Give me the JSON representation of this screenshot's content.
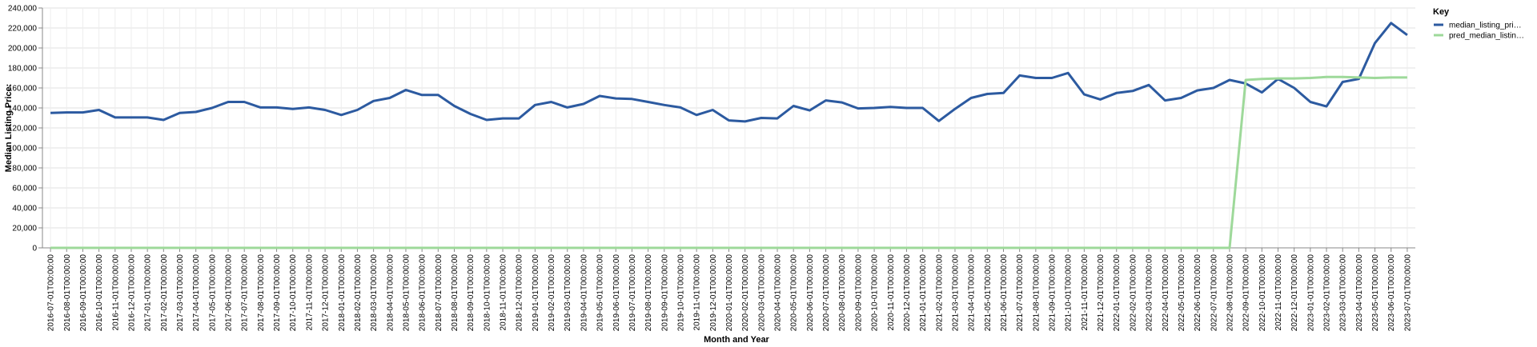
{
  "chart_data": {
    "type": "line",
    "xlabel": "Month and Year",
    "ylabel": "Median Listing Price:",
    "ylim": [
      0,
      240000
    ],
    "yticks": [
      "0",
      "20,000",
      "40,000",
      "60,000",
      "80,000",
      "100,000",
      "120,000",
      "140,000",
      "160,000",
      "180,000",
      "200,000",
      "220,000",
      "240,000"
    ],
    "grid": true,
    "legend": {
      "title": "Key",
      "position": "right"
    },
    "x": [
      "2016-07-01T00:00:00",
      "2016-08-01T00:00:00",
      "2016-09-01T00:00:00",
      "2016-10-01T00:00:00",
      "2016-11-01T00:00:00",
      "2016-12-01T00:00:00",
      "2017-01-01T00:00:00",
      "2017-02-01T00:00:00",
      "2017-03-01T00:00:00",
      "2017-04-01T00:00:00",
      "2017-05-01T00:00:00",
      "2017-06-01T00:00:00",
      "2017-07-01T00:00:00",
      "2017-08-01T00:00:00",
      "2017-09-01T00:00:00",
      "2017-10-01T00:00:00",
      "2017-11-01T00:00:00",
      "2017-12-01T00:00:00",
      "2018-01-01T00:00:00",
      "2018-02-01T00:00:00",
      "2018-03-01T00:00:00",
      "2018-04-01T00:00:00",
      "2018-05-01T00:00:00",
      "2018-06-01T00:00:00",
      "2018-07-01T00:00:00",
      "2018-08-01T00:00:00",
      "2018-09-01T00:00:00",
      "2018-10-01T00:00:00",
      "2018-11-01T00:00:00",
      "2018-12-01T00:00:00",
      "2019-01-01T00:00:00",
      "2019-02-01T00:00:00",
      "2019-03-01T00:00:00",
      "2019-04-01T00:00:00",
      "2019-05-01T00:00:00",
      "2019-06-01T00:00:00",
      "2019-07-01T00:00:00",
      "2019-08-01T00:00:00",
      "2019-09-01T00:00:00",
      "2019-10-01T00:00:00",
      "2019-11-01T00:00:00",
      "2019-12-01T00:00:00",
      "2020-01-01T00:00:00",
      "2020-02-01T00:00:00",
      "2020-03-01T00:00:00",
      "2020-04-01T00:00:00",
      "2020-05-01T00:00:00",
      "2020-06-01T00:00:00",
      "2020-07-01T00:00:00",
      "2020-08-01T00:00:00",
      "2020-09-01T00:00:00",
      "2020-10-01T00:00:00",
      "2020-11-01T00:00:00",
      "2020-12-01T00:00:00",
      "2021-01-01T00:00:00",
      "2021-02-01T00:00:00",
      "2021-03-01T00:00:00",
      "2021-04-01T00:00:00",
      "2021-05-01T00:00:00",
      "2021-06-01T00:00:00",
      "2021-07-01T00:00:00",
      "2021-08-01T00:00:00",
      "2021-09-01T00:00:00",
      "2021-10-01T00:00:00",
      "2021-11-01T00:00:00",
      "2021-12-01T00:00:00",
      "2022-01-01T00:00:00",
      "2022-02-01T00:00:00",
      "2022-03-01T00:00:00",
      "2022-04-01T00:00:00",
      "2022-05-01T00:00:00",
      "2022-06-01T00:00:00",
      "2022-07-01T00:00:00",
      "2022-08-01T00:00:00",
      "2022-09-01T00:00:00",
      "2022-10-01T00:00:00",
      "2022-11-01T00:00:00",
      "2022-12-01T00:00:00",
      "2023-01-01T00:00:00",
      "2023-02-01T00:00:00",
      "2023-03-01T00:00:00",
      "2023-04-01T00:00:00",
      "2023-05-01T00:00:00",
      "2023-06-01T00:00:00",
      "2023-07-01T00:00:00"
    ],
    "series": [
      {
        "name": "median_listing_pri…",
        "color": "#2c5aa0",
        "values": [
          135000,
          135500,
          135500,
          138000,
          130500,
          130500,
          130500,
          128000,
          135000,
          136000,
          140000,
          146000,
          146000,
          140500,
          140500,
          139000,
          140500,
          138000,
          133000,
          138000,
          147000,
          150000,
          158000,
          153000,
          153000,
          142000,
          134000,
          128000,
          129500,
          129500,
          143000,
          146000,
          140500,
          144000,
          152000,
          149500,
          149000,
          146000,
          143000,
          140500,
          133000,
          138000,
          127500,
          126500,
          130000,
          129500,
          142000,
          137500,
          147500,
          145500,
          139500,
          140000,
          141000,
          140000,
          140000,
          127000,
          139000,
          150000,
          154000,
          155000,
          172500,
          170000,
          170000,
          175000,
          153500,
          148500,
          155000,
          157000,
          163000,
          147500,
          150000,
          157500,
          160000,
          168000,
          164500,
          155500,
          169000,
          160000,
          146000,
          141500,
          166000,
          169000,
          205000,
          225000,
          213000
        ]
      },
      {
        "name": "pred_median_listin…",
        "color": "#9ed99a",
        "values": [
          0,
          0,
          0,
          0,
          0,
          0,
          0,
          0,
          0,
          0,
          0,
          0,
          0,
          0,
          0,
          0,
          0,
          0,
          0,
          0,
          0,
          0,
          0,
          0,
          0,
          0,
          0,
          0,
          0,
          0,
          0,
          0,
          0,
          0,
          0,
          0,
          0,
          0,
          0,
          0,
          0,
          0,
          0,
          0,
          0,
          0,
          0,
          0,
          0,
          0,
          0,
          0,
          0,
          0,
          0,
          0,
          0,
          0,
          0,
          0,
          0,
          0,
          0,
          0,
          0,
          0,
          0,
          0,
          0,
          0,
          0,
          0,
          0,
          0,
          168000,
          169000,
          169500,
          169500,
          170000,
          171000,
          171000,
          170500,
          170000,
          170500,
          170500
        ]
      }
    ]
  }
}
